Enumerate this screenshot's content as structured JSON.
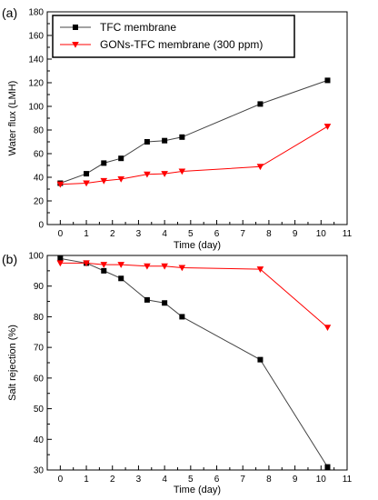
{
  "chart_data": [
    {
      "type": "line",
      "panel_label": "(a)",
      "xlabel": "Time (day)",
      "ylabel": "Water flux (LMH)",
      "xlim": [
        -0.5,
        11
      ],
      "ylim": [
        0,
        180
      ],
      "xticks": [
        0,
        1,
        2,
        3,
        4,
        5,
        6,
        7,
        8,
        9,
        10,
        11
      ],
      "yticks": [
        0,
        20,
        40,
        60,
        80,
        100,
        120,
        140,
        160,
        180
      ],
      "grid": false,
      "legend_position": "top-left",
      "x": [
        0,
        1,
        1.67,
        2.33,
        3.33,
        4,
        4.67,
        7.67,
        10.25
      ],
      "series": [
        {
          "name": "TFC membrane",
          "color": "#000000",
          "marker": "square",
          "values": [
            35,
            43,
            52,
            56,
            70,
            71,
            74,
            102,
            122
          ]
        },
        {
          "name": "GONs-TFC membrane (300 ppm)",
          "color": "#ff0000",
          "marker": "triangle-down",
          "values": [
            34,
            35,
            37,
            38.5,
            42.5,
            43,
            45,
            49,
            83
          ]
        }
      ]
    },
    {
      "type": "line",
      "panel_label": "(b)",
      "xlabel": "Time (day)",
      "ylabel": "Salt rejection (%)",
      "xlim": [
        -0.5,
        11
      ],
      "ylim": [
        30,
        100
      ],
      "xticks": [
        0,
        1,
        2,
        3,
        4,
        5,
        6,
        7,
        8,
        9,
        10,
        11
      ],
      "yticks": [
        30,
        40,
        50,
        60,
        70,
        80,
        90,
        100
      ],
      "grid": false,
      "x": [
        0,
        1,
        1.67,
        2.33,
        3.33,
        4,
        4.67,
        7.67,
        10.25
      ],
      "series": [
        {
          "name": "TFC membrane",
          "color": "#000000",
          "marker": "square",
          "values": [
            99,
            97.5,
            95,
            92.5,
            85.5,
            84.5,
            80,
            66,
            31
          ]
        },
        {
          "name": "GONs-TFC membrane (300 ppm)",
          "color": "#ff0000",
          "marker": "triangle-down",
          "values": [
            97.5,
            97.5,
            97,
            97,
            96.5,
            96.5,
            96,
            95.5,
            76.5
          ]
        }
      ]
    }
  ]
}
